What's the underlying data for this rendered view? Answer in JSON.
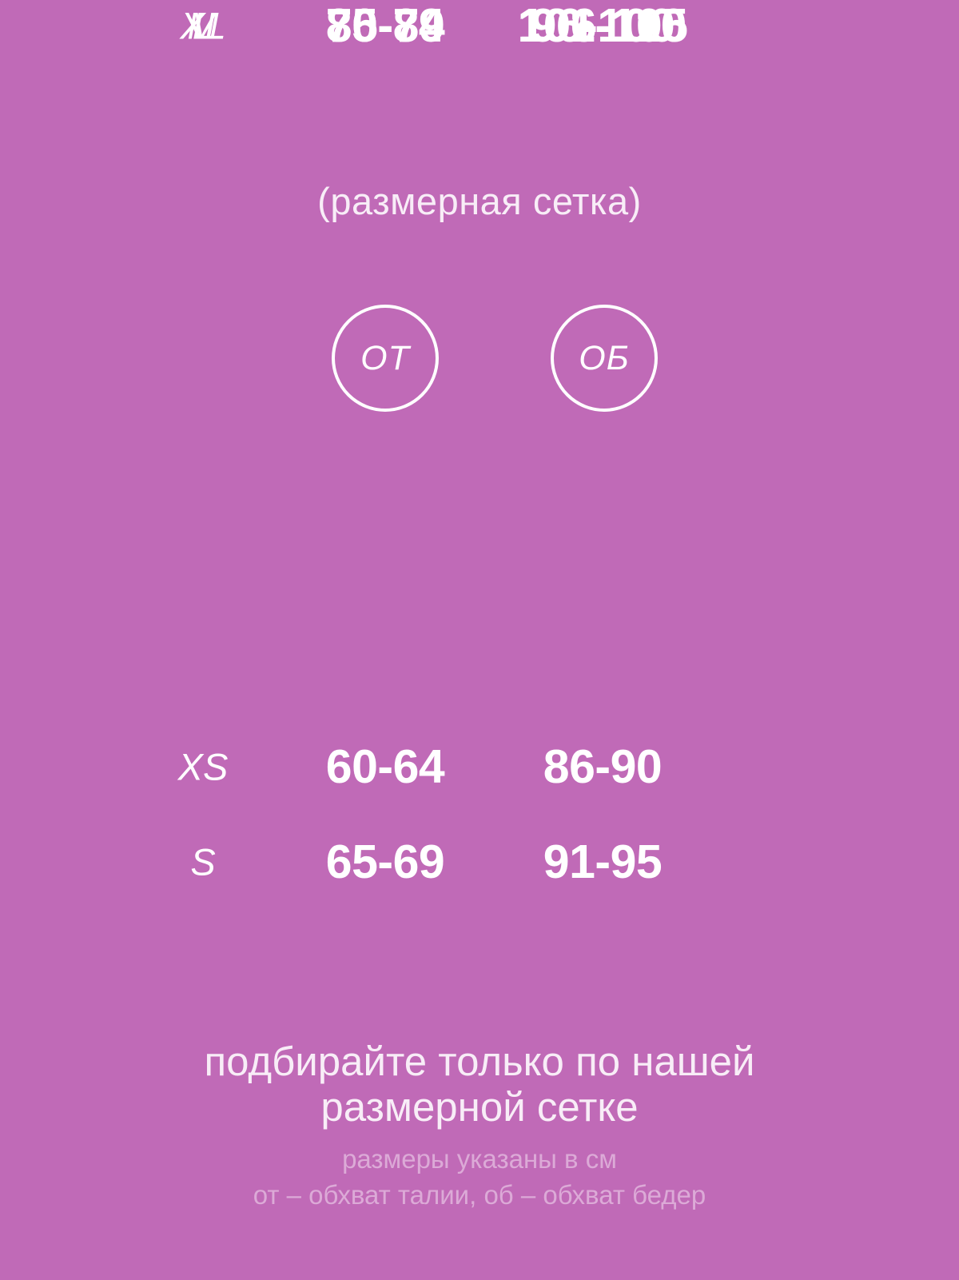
{
  "colors": {
    "background": "#c06ab7",
    "text": "#ffffff",
    "soft_text": "#f8edf7",
    "muted_text": "#dcaad7"
  },
  "chart_data": {
    "type": "table",
    "title": "(размерная сетка)",
    "columns": [
      "",
      "ОТ",
      "ОБ"
    ],
    "rows": [
      [
        "XS",
        "60-64",
        "86-90"
      ],
      [
        "S",
        "65-69",
        "91-95"
      ],
      [
        "M",
        "70-74",
        "96-100"
      ],
      [
        "L",
        "75-79",
        "101-105"
      ],
      [
        "XL",
        "80-84",
        "106-110"
      ]
    ],
    "units": "см",
    "legend": {
      "ОТ": "обхват талии",
      "ОБ": "обхват бедер"
    }
  },
  "note": {
    "line1": "подбирайте только по нашей",
    "line2": "размерной сетке"
  },
  "footnote": {
    "line1": "размеры указаны в см",
    "line2": "от – обхват талии, об – обхват бедер"
  }
}
